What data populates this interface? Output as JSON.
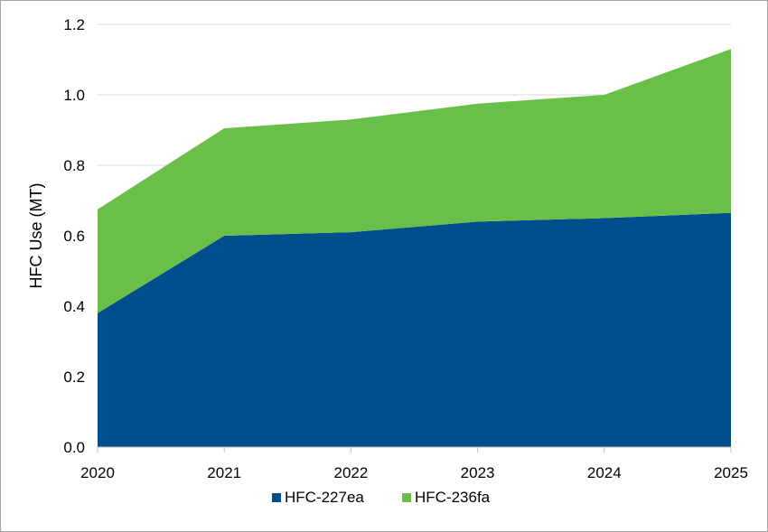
{
  "chart_data": {
    "type": "area",
    "stacked": true,
    "x": [
      "2020",
      "2021",
      "2022",
      "2023",
      "2024",
      "2025"
    ],
    "series": [
      {
        "name": "HFC-227ea",
        "values": [
          0.38,
          0.6,
          0.61,
          0.64,
          0.65,
          0.665
        ],
        "color": "#004f8c"
      },
      {
        "name": "HFC-236fa",
        "values": [
          0.295,
          0.305,
          0.32,
          0.335,
          0.35,
          0.465
        ],
        "color": "#6abf4b"
      }
    ],
    "ylabel": "HFC Use (MT)",
    "xlabel": "",
    "ylim": [
      0,
      1.2
    ],
    "yticks": [
      "0.0",
      "0.2",
      "0.4",
      "0.6",
      "0.8",
      "1.0",
      "1.2"
    ],
    "grid": true,
    "gridline_color": "#d9d9d9",
    "legend_position": "bottom"
  }
}
